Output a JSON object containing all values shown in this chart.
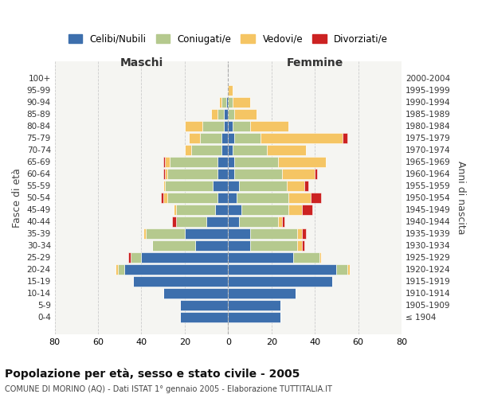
{
  "age_groups": [
    "100+",
    "95-99",
    "90-94",
    "85-89",
    "80-84",
    "75-79",
    "70-74",
    "65-69",
    "60-64",
    "55-59",
    "50-54",
    "45-49",
    "40-44",
    "35-39",
    "30-34",
    "25-29",
    "20-24",
    "15-19",
    "10-14",
    "5-9",
    "0-4"
  ],
  "birth_years": [
    "≤ 1904",
    "1905-1909",
    "1910-1914",
    "1915-1919",
    "1920-1924",
    "1925-1929",
    "1930-1934",
    "1935-1939",
    "1940-1944",
    "1945-1949",
    "1950-1954",
    "1955-1959",
    "1960-1964",
    "1965-1969",
    "1970-1974",
    "1975-1979",
    "1980-1984",
    "1985-1989",
    "1990-1994",
    "1995-1999",
    "2000-2004"
  ],
  "maschi": {
    "celibi": [
      0,
      0,
      1,
      2,
      2,
      3,
      3,
      5,
      5,
      7,
      5,
      6,
      10,
      20,
      15,
      40,
      48,
      44,
      30,
      22,
      22
    ],
    "coniugati": [
      0,
      0,
      2,
      3,
      10,
      10,
      14,
      22,
      23,
      22,
      23,
      18,
      14,
      18,
      20,
      5,
      3,
      0,
      0,
      0,
      0
    ],
    "vedovi": [
      0,
      0,
      1,
      3,
      8,
      5,
      3,
      2,
      1,
      1,
      2,
      1,
      0,
      1,
      0,
      0,
      1,
      0,
      0,
      0,
      0
    ],
    "divorziati": [
      0,
      0,
      0,
      0,
      0,
      0,
      0,
      1,
      1,
      0,
      1,
      0,
      2,
      0,
      0,
      1,
      0,
      0,
      0,
      0,
      0
    ]
  },
  "femmine": {
    "nubili": [
      0,
      0,
      0,
      0,
      2,
      3,
      2,
      3,
      3,
      5,
      4,
      6,
      5,
      10,
      10,
      30,
      50,
      48,
      31,
      24,
      24
    ],
    "coniugate": [
      0,
      0,
      2,
      3,
      8,
      12,
      16,
      20,
      22,
      22,
      24,
      22,
      18,
      22,
      22,
      12,
      5,
      0,
      0,
      0,
      0
    ],
    "vedove": [
      0,
      2,
      8,
      10,
      18,
      38,
      18,
      22,
      15,
      8,
      10,
      6,
      2,
      2,
      2,
      1,
      1,
      0,
      0,
      0,
      0
    ],
    "divorziate": [
      0,
      0,
      0,
      0,
      0,
      2,
      0,
      0,
      1,
      2,
      5,
      5,
      1,
      2,
      1,
      0,
      0,
      0,
      0,
      0,
      0
    ]
  },
  "colors": {
    "celibi": "#3d6fad",
    "coniugati": "#b5c98e",
    "vedovi": "#f5c564",
    "divorziati": "#cc2222"
  },
  "title": "Popolazione per età, sesso e stato civile - 2005",
  "subtitle": "COMUNE DI MORINO (AQ) - Dati ISTAT 1° gennaio 2005 - Elaborazione TUTTITALIA.IT",
  "ylabel_left": "Fasce di età",
  "ylabel_right": "Anni di nascita",
  "xlabel_left": "Maschi",
  "xlabel_right": "Femmine",
  "xlim": 80,
  "background_color": "#ffffff",
  "legend_labels": [
    "Celibi/Nubili",
    "Coniugati/e",
    "Vedovi/e",
    "Divorziati/e"
  ]
}
